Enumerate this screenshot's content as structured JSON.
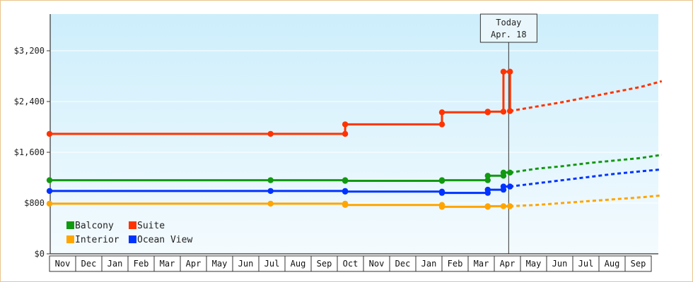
{
  "chart_data": {
    "type": "line",
    "y_ticks": [
      {
        "value": 0,
        "label": "$0"
      },
      {
        "value": 800,
        "label": "$800"
      },
      {
        "value": 1600,
        "label": "$1,600"
      },
      {
        "value": 2400,
        "label": "$2,400"
      },
      {
        "value": 3200,
        "label": "$3,200"
      }
    ],
    "ylim": [
      0,
      3200
    ],
    "months": [
      "Nov",
      "Dec",
      "Jan",
      "Feb",
      "Mar",
      "Apr",
      "May",
      "Jun",
      "Jul",
      "Aug",
      "Sep",
      "Oct",
      "Nov",
      "Dec",
      "Jan",
      "Feb",
      "Mar",
      "Apr",
      "May",
      "Jun",
      "Jul",
      "Aug",
      "Sep"
    ],
    "today_marker": {
      "line1": "Today",
      "line2": "Apr. 18",
      "x": 17.55
    },
    "series": [
      {
        "name": "Suite",
        "color": "#ff3300",
        "points": [
          [
            0,
            1890
          ],
          [
            8.45,
            1890
          ],
          [
            11.3,
            1890
          ],
          [
            11.3,
            2040
          ],
          [
            15.0,
            2040
          ],
          [
            15.0,
            2230
          ],
          [
            16.75,
            2230
          ],
          [
            16.75,
            2240
          ],
          [
            17.35,
            2240
          ],
          [
            17.35,
            2870
          ],
          [
            17.6,
            2870
          ],
          [
            17.6,
            2250
          ]
        ],
        "markers": [
          [
            0,
            1890
          ],
          [
            8.45,
            1890
          ],
          [
            11.3,
            1890
          ],
          [
            11.3,
            2040
          ],
          [
            15.0,
            2040
          ],
          [
            15.0,
            2230
          ],
          [
            16.75,
            2230
          ],
          [
            16.75,
            2240
          ],
          [
            17.35,
            2240
          ],
          [
            17.35,
            2870
          ],
          [
            17.6,
            2870
          ],
          [
            17.6,
            2250
          ]
        ],
        "forecast": [
          [
            17.6,
            2250
          ],
          [
            18.6,
            2320
          ],
          [
            19.6,
            2390
          ],
          [
            20.6,
            2470
          ],
          [
            21.6,
            2550
          ],
          [
            22.6,
            2630
          ],
          [
            23.4,
            2720
          ]
        ]
      },
      {
        "name": "Balcony",
        "color": "#119911",
        "points": [
          [
            0,
            1160
          ],
          [
            8.45,
            1160
          ],
          [
            11.3,
            1160
          ],
          [
            11.3,
            1150
          ],
          [
            15.0,
            1150
          ],
          [
            15.0,
            1160
          ],
          [
            16.75,
            1160
          ],
          [
            16.75,
            1230
          ],
          [
            17.35,
            1230
          ],
          [
            17.35,
            1280
          ],
          [
            17.6,
            1280
          ]
        ],
        "markers": [
          [
            0,
            1160
          ],
          [
            8.45,
            1160
          ],
          [
            11.3,
            1160
          ],
          [
            11.3,
            1150
          ],
          [
            15.0,
            1150
          ],
          [
            15.0,
            1160
          ],
          [
            16.75,
            1160
          ],
          [
            16.75,
            1230
          ],
          [
            17.35,
            1230
          ],
          [
            17.35,
            1280
          ],
          [
            17.6,
            1280
          ]
        ],
        "forecast": [
          [
            17.6,
            1280
          ],
          [
            18.6,
            1340
          ],
          [
            19.6,
            1380
          ],
          [
            20.6,
            1430
          ],
          [
            21.6,
            1470
          ],
          [
            22.6,
            1510
          ],
          [
            23.4,
            1560
          ]
        ]
      },
      {
        "name": "Ocean View",
        "color": "#0033ff",
        "points": [
          [
            0,
            990
          ],
          [
            8.45,
            990
          ],
          [
            11.3,
            990
          ],
          [
            11.3,
            980
          ],
          [
            15.0,
            980
          ],
          [
            15.0,
            960
          ],
          [
            16.75,
            960
          ],
          [
            16.75,
            1010
          ],
          [
            17.35,
            1010
          ],
          [
            17.35,
            1060
          ],
          [
            17.6,
            1060
          ]
        ],
        "markers": [
          [
            0,
            990
          ],
          [
            8.45,
            990
          ],
          [
            11.3,
            990
          ],
          [
            11.3,
            980
          ],
          [
            15.0,
            980
          ],
          [
            15.0,
            960
          ],
          [
            16.75,
            960
          ],
          [
            16.75,
            1010
          ],
          [
            17.35,
            1010
          ],
          [
            17.35,
            1060
          ],
          [
            17.6,
            1060
          ]
        ],
        "forecast": [
          [
            17.6,
            1060
          ],
          [
            18.6,
            1110
          ],
          [
            19.6,
            1160
          ],
          [
            20.6,
            1210
          ],
          [
            21.6,
            1260
          ],
          [
            22.6,
            1300
          ],
          [
            23.4,
            1330
          ]
        ]
      },
      {
        "name": "Interior",
        "color": "#ffa500",
        "points": [
          [
            0,
            790
          ],
          [
            8.45,
            790
          ],
          [
            11.3,
            790
          ],
          [
            11.3,
            770
          ],
          [
            15.0,
            770
          ],
          [
            15.0,
            740
          ],
          [
            16.75,
            740
          ],
          [
            16.75,
            750
          ],
          [
            17.35,
            750
          ],
          [
            17.6,
            750
          ]
        ],
        "markers": [
          [
            0,
            790
          ],
          [
            8.45,
            790
          ],
          [
            11.3,
            790
          ],
          [
            11.3,
            770
          ],
          [
            15.0,
            770
          ],
          [
            15.0,
            740
          ],
          [
            16.75,
            740
          ],
          [
            16.75,
            750
          ],
          [
            17.35,
            750
          ],
          [
            17.6,
            750
          ]
        ],
        "forecast": [
          [
            17.6,
            750
          ],
          [
            18.6,
            770
          ],
          [
            19.6,
            800
          ],
          [
            20.6,
            830
          ],
          [
            21.6,
            860
          ],
          [
            22.6,
            890
          ],
          [
            23.4,
            920
          ]
        ]
      }
    ],
    "legend": [
      {
        "name": "Balcony",
        "color": "#119911"
      },
      {
        "name": "Suite",
        "color": "#ff3300"
      },
      {
        "name": "Interior",
        "color": "#ffa500"
      },
      {
        "name": "Ocean View",
        "color": "#0033ff"
      }
    ]
  }
}
